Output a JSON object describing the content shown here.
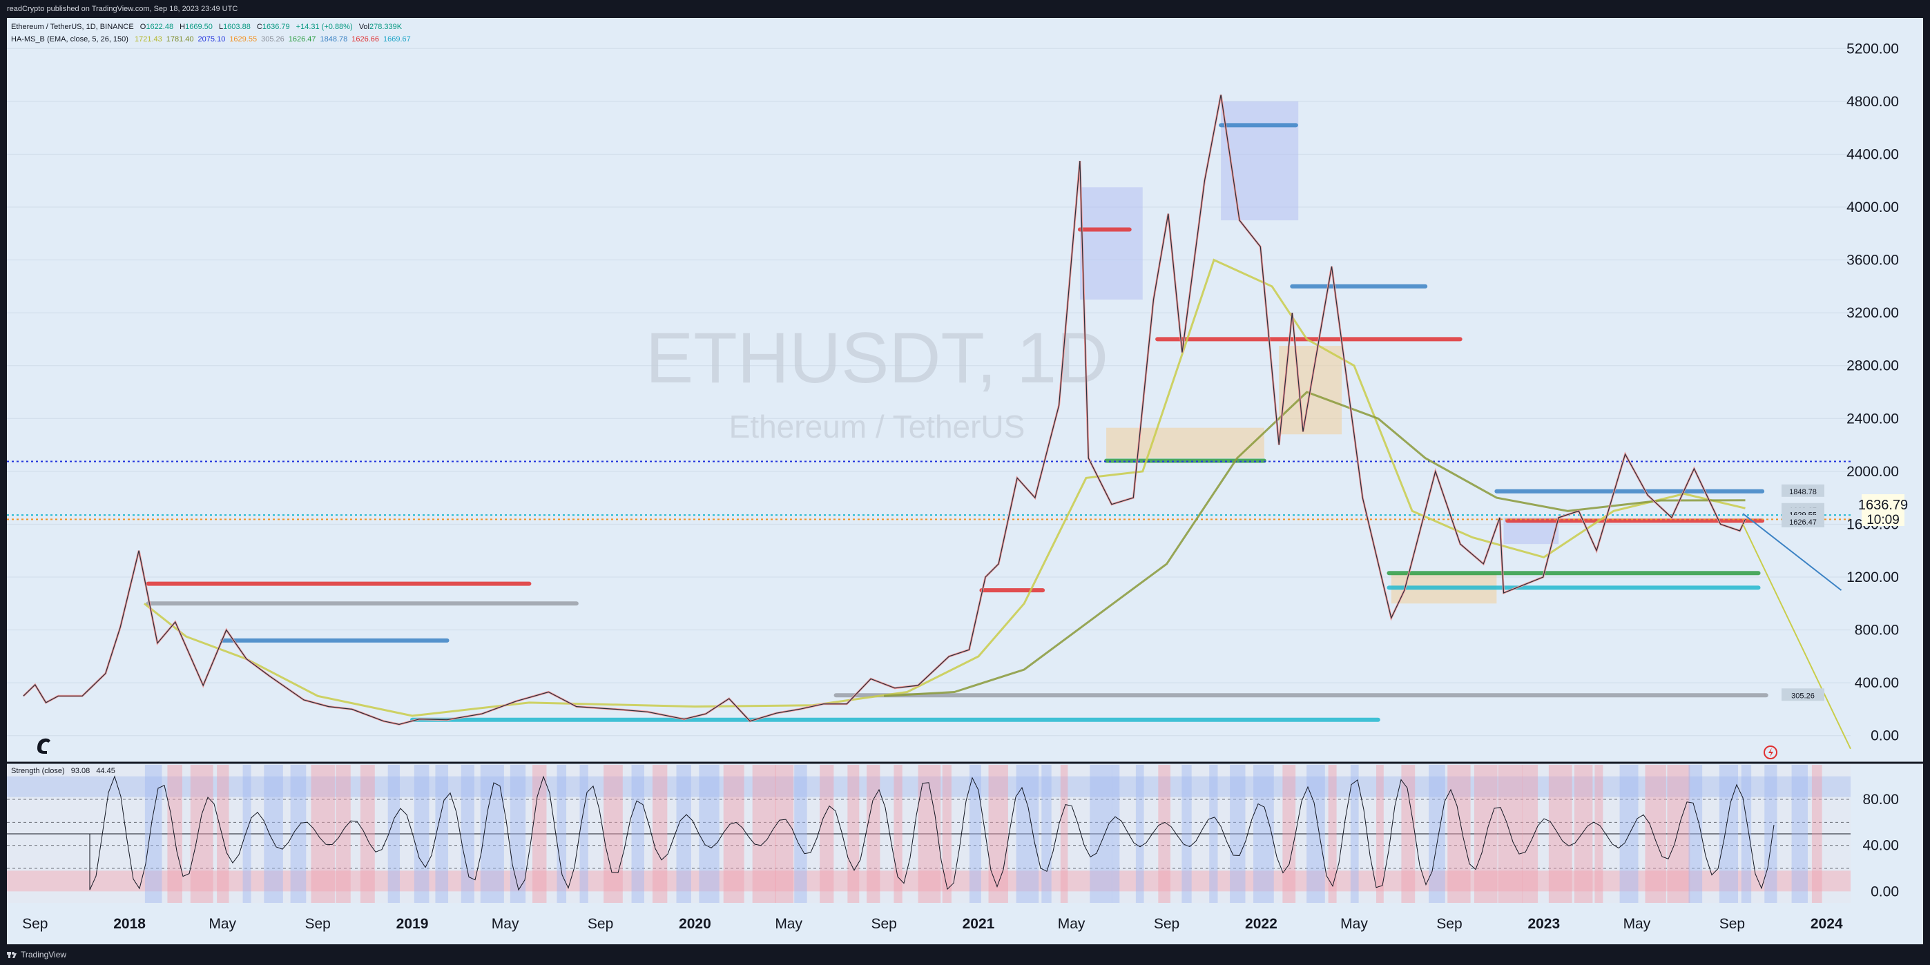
{
  "header": {
    "published": "readCrypto published on TradingView.com, Sep 18, 2023 23:49 UTC"
  },
  "footer": {
    "brand": "TradingView"
  },
  "legend": {
    "symbol": "Ethereum / TetherUS, 1D, BINANCE",
    "ohlc": [
      {
        "label": "O",
        "value": "1622.48"
      },
      {
        "label": "H",
        "value": "1669.50"
      },
      {
        "label": "L",
        "value": "1603.88"
      },
      {
        "label": "C",
        "value": "1636.79"
      }
    ],
    "change": "+14.31 (+0.88%)",
    "vol_label": "Vol",
    "vol_value": "278.339K",
    "indicator": "HA-MS_B (EMA, close, 5, 26, 150)",
    "indicator_values": [
      {
        "v": "1721.43",
        "color": "#b5b82a"
      },
      {
        "v": "1781.40",
        "color": "#7d8b2a"
      },
      {
        "v": "2075.10",
        "color": "#2233dd"
      },
      {
        "v": "1629.55",
        "color": "#f29222"
      },
      {
        "v": "305.26",
        "color": "#8a8f99"
      },
      {
        "v": "1626.47",
        "color": "#2f9e44"
      },
      {
        "v": "1848.78",
        "color": "#3b82c4"
      },
      {
        "v": "1626.66",
        "color": "#e03131"
      },
      {
        "v": "1669.67",
        "color": "#22a6c8"
      }
    ],
    "strength_label": "Strength (close)",
    "strength_values": [
      "93.08",
      "44.45"
    ]
  },
  "watermark": {
    "symbol": "ETHUSDT, 1D",
    "name": "Ethereum / TetherUS"
  },
  "price_label": {
    "price": "1636.79",
    "countdown": "10:09"
  },
  "line_labels": [
    {
      "text": "1848.78",
      "price": 1848.78
    },
    {
      "text": "1669.67",
      "price": 1708
    },
    {
      "text": "1629.55",
      "price": 1672
    },
    {
      "text": "1626.47",
      "price": 1618
    },
    {
      "text": "305.26",
      "price": 305.26
    }
  ],
  "colors": {
    "bg": "#e1ecf7",
    "red": "#e03131",
    "blue": "#2233dd",
    "lightblue": "#3b82c4",
    "green": "#2f9e44",
    "gray": "#9aa0a8",
    "orange": "#f29222",
    "cyan": "#22b8cf",
    "olive": "#8a9a3a",
    "lime": "#c9cd4a",
    "pink": "#f19a9a"
  },
  "chart_data": {
    "type": "line",
    "title": "ETHUSDT, 1D",
    "x_axis": {
      "type": "date",
      "ticks": [
        "Sep",
        "2018",
        "May",
        "Sep",
        "2019",
        "May",
        "Sep",
        "2020",
        "May",
        "Sep",
        "2021",
        "May",
        "Sep",
        "2022",
        "May",
        "Sep",
        "2023",
        "May",
        "Sep",
        "2024"
      ],
      "range": [
        "2017-08-01",
        "2024-02-01"
      ]
    },
    "y_axis": {
      "ticks": [
        "5200.00",
        "4800.00",
        "4400.00",
        "4000.00",
        "3600.00",
        "3200.00",
        "2800.00",
        "2400.00",
        "2000.00",
        "1600.00",
        "1200.00",
        "800.00",
        "400.00",
        "0.00"
      ],
      "range": [
        -200,
        5400
      ]
    },
    "oscillator": {
      "name": "Strength (close)",
      "ticks": [
        "80.00",
        "40.00",
        "0.00"
      ],
      "range": [
        -10,
        110
      ]
    },
    "price_series": {
      "name": "ETHUSDT",
      "points": [
        [
          "2017-08-17",
          300
        ],
        [
          "2017-09-01",
          385
        ],
        [
          "2017-09-15",
          250
        ],
        [
          "2017-10-01",
          300
        ],
        [
          "2017-11-01",
          300
        ],
        [
          "2017-12-01",
          470
        ],
        [
          "2017-12-20",
          820
        ],
        [
          "2018-01-13",
          1400
        ],
        [
          "2018-02-06",
          700
        ],
        [
          "2018-03-01",
          860
        ],
        [
          "2018-04-06",
          380
        ],
        [
          "2018-05-06",
          800
        ],
        [
          "2018-06-01",
          580
        ],
        [
          "2018-07-01",
          450
        ],
        [
          "2018-08-14",
          270
        ],
        [
          "2018-09-15",
          220
        ],
        [
          "2018-10-15",
          200
        ],
        [
          "2018-11-25",
          110
        ],
        [
          "2018-12-15",
          85
        ],
        [
          "2019-01-10",
          125
        ],
        [
          "2019-02-15",
          120
        ],
        [
          "2019-04-01",
          165
        ],
        [
          "2019-05-15",
          260
        ],
        [
          "2019-06-26",
          330
        ],
        [
          "2019-08-01",
          220
        ],
        [
          "2019-09-20",
          200
        ],
        [
          "2019-11-01",
          180
        ],
        [
          "2019-12-18",
          125
        ],
        [
          "2020-01-15",
          165
        ],
        [
          "2020-02-14",
          280
        ],
        [
          "2020-03-12",
          110
        ],
        [
          "2020-04-15",
          170
        ],
        [
          "2020-05-15",
          200
        ],
        [
          "2020-06-15",
          240
        ],
        [
          "2020-07-15",
          240
        ],
        [
          "2020-08-15",
          430
        ],
        [
          "2020-09-15",
          360
        ],
        [
          "2020-10-15",
          380
        ],
        [
          "2020-11-24",
          600
        ],
        [
          "2020-12-20",
          650
        ],
        [
          "2021-01-10",
          1200
        ],
        [
          "2021-01-27",
          1300
        ],
        [
          "2021-02-20",
          1950
        ],
        [
          "2021-03-15",
          1800
        ],
        [
          "2021-04-15",
          2500
        ],
        [
          "2021-05-12",
          4350
        ],
        [
          "2021-05-23",
          2100
        ],
        [
          "2021-06-22",
          1750
        ],
        [
          "2021-07-20",
          1800
        ],
        [
          "2021-08-15",
          3300
        ],
        [
          "2021-09-03",
          3950
        ],
        [
          "2021-09-21",
          2900
        ],
        [
          "2021-10-20",
          4200
        ],
        [
          "2021-11-10",
          4850
        ],
        [
          "2021-12-04",
          3900
        ],
        [
          "2021-12-31",
          3700
        ],
        [
          "2022-01-24",
          2200
        ],
        [
          "2022-02-10",
          3200
        ],
        [
          "2022-02-24",
          2300
        ],
        [
          "2022-04-02",
          3550
        ],
        [
          "2022-05-12",
          1800
        ],
        [
          "2022-06-18",
          890
        ],
        [
          "2022-07-05",
          1100
        ],
        [
          "2022-08-14",
          2000
        ],
        [
          "2022-09-15",
          1450
        ],
        [
          "2022-10-15",
          1300
        ],
        [
          "2022-11-05",
          1650
        ],
        [
          "2022-11-10",
          1080
        ],
        [
          "2022-12-31",
          1200
        ],
        [
          "2023-01-20",
          1650
        ],
        [
          "2023-02-15",
          1700
        ],
        [
          "2023-03-10",
          1400
        ],
        [
          "2023-04-16",
          2130
        ],
        [
          "2023-05-15",
          1820
        ],
        [
          "2023-06-15",
          1650
        ],
        [
          "2023-07-14",
          2020
        ],
        [
          "2023-08-17",
          1600
        ],
        [
          "2023-09-11",
          1550
        ],
        [
          "2023-09-18",
          1636.79
        ]
      ]
    },
    "ema_series": [
      {
        "values": [
          [
            "2018-01-20",
            1000
          ],
          [
            "2018-03-15",
            750
          ],
          [
            "2018-06-01",
            580
          ],
          [
            "2018-09-01",
            300
          ],
          [
            "2019-01-01",
            150
          ],
          [
            "2019-06-01",
            250
          ],
          [
            "2020-01-01",
            220
          ],
          [
            "2020-06-01",
            230
          ],
          [
            "2020-10-01",
            330
          ],
          [
            "2021-01-01",
            600
          ],
          [
            "2021-03-01",
            1000
          ],
          [
            "2021-05-20",
            1950
          ],
          [
            "2021-08-01",
            2000
          ],
          [
            "2021-11-01",
            3600
          ],
          [
            "2022-01-15",
            3400
          ],
          [
            "2022-03-01",
            3000
          ],
          [
            "2022-05-01",
            2800
          ],
          [
            "2022-07-15",
            1700
          ],
          [
            "2022-10-01",
            1500
          ],
          [
            "2023-01-01",
            1350
          ],
          [
            "2023-04-01",
            1700
          ],
          [
            "2023-07-01",
            1830
          ],
          [
            "2023-09-18",
            1721
          ]
        ]
      },
      {
        "values": [
          [
            "2020-09-01",
            300
          ],
          [
            "2020-12-01",
            330
          ],
          [
            "2021-03-01",
            500
          ],
          [
            "2021-06-01",
            900
          ],
          [
            "2021-09-01",
            1300
          ],
          [
            "2021-12-01",
            2100
          ],
          [
            "2022-03-01",
            2600
          ],
          [
            "2022-06-01",
            2400
          ],
          [
            "2022-08-01",
            2100
          ],
          [
            "2022-11-01",
            1800
          ],
          [
            "2023-02-01",
            1700
          ],
          [
            "2023-06-01",
            1780
          ],
          [
            "2023-09-18",
            1781
          ]
        ]
      }
    ],
    "levels": [
      {
        "price": 1150,
        "from": "2018-01-25",
        "to": "2019-06-01",
        "color": "red"
      },
      {
        "price": 1000,
        "from": "2018-01-25",
        "to": "2019-08-01",
        "color": "gray"
      },
      {
        "price": 720,
        "from": "2018-05-01",
        "to": "2019-02-15",
        "color": "lightblue"
      },
      {
        "price": 305.26,
        "from": "2020-07-01",
        "to": "2023-10-15",
        "color": "gray"
      },
      {
        "price": 120,
        "from": "2019-01-01",
        "to": "2022-06-01",
        "color": "cyan"
      },
      {
        "price": 3000,
        "from": "2021-08-20",
        "to": "2022-09-15",
        "color": "red"
      },
      {
        "price": 2080,
        "from": "2021-06-15",
        "to": "2022-01-05",
        "color": "green"
      },
      {
        "price": 1230,
        "from": "2022-06-15",
        "to": "2023-10-05",
        "color": "green"
      },
      {
        "price": 1120,
        "from": "2022-06-15",
        "to": "2023-10-05",
        "color": "cyan"
      },
      {
        "price": 1848.78,
        "from": "2022-11-01",
        "to": "2023-10-10",
        "color": "lightblue"
      },
      {
        "price": 1626.66,
        "from": "2022-11-15",
        "to": "2023-10-10",
        "color": "red"
      },
      {
        "price": 3830,
        "from": "2021-05-12",
        "to": "2021-07-15",
        "color": "red"
      },
      {
        "price": 4620,
        "from": "2021-11-10",
        "to": "2022-02-15",
        "color": "lightblue"
      },
      {
        "price": 3400,
        "from": "2022-02-10",
        "to": "2022-08-01",
        "color": "lightblue"
      },
      {
        "price": 1100,
        "from": "2021-01-05",
        "to": "2021-03-25",
        "color": "red"
      }
    ],
    "dotted_lines": [
      {
        "price": 2075.1,
        "color": "blue"
      },
      {
        "price": 1669.67,
        "color": "cyan"
      },
      {
        "price": 1636.79,
        "color": "orange"
      }
    ],
    "zones": [
      {
        "from": "2021-05-12",
        "to": "2021-08-01",
        "high": 4150,
        "low": 3300,
        "color": "blue"
      },
      {
        "from": "2021-11-10",
        "to": "2022-02-18",
        "high": 4800,
        "low": 3900,
        "color": "blue"
      },
      {
        "from": "2021-06-15",
        "to": "2022-01-05",
        "high": 2330,
        "low": 2100,
        "color": "orange"
      },
      {
        "from": "2022-01-24",
        "to": "2022-04-15",
        "high": 2950,
        "low": 2280,
        "color": "orange"
      },
      {
        "from": "2022-06-18",
        "to": "2022-11-01",
        "high": 1230,
        "low": 1000,
        "color": "orange"
      },
      {
        "from": "2022-11-10",
        "to": "2023-01-20",
        "high": 1650,
        "low": 1450,
        "color": "blue"
      }
    ],
    "projection_lines": [
      {
        "from": [
          "2023-09-15",
          1600
        ],
        "to": [
          "2024-02-01",
          -100
        ],
        "color": "lime"
      },
      {
        "from": [
          "2023-09-15",
          1680
        ],
        "to": [
          "2024-01-20",
          1100
        ],
        "color": "lightblue"
      }
    ]
  }
}
